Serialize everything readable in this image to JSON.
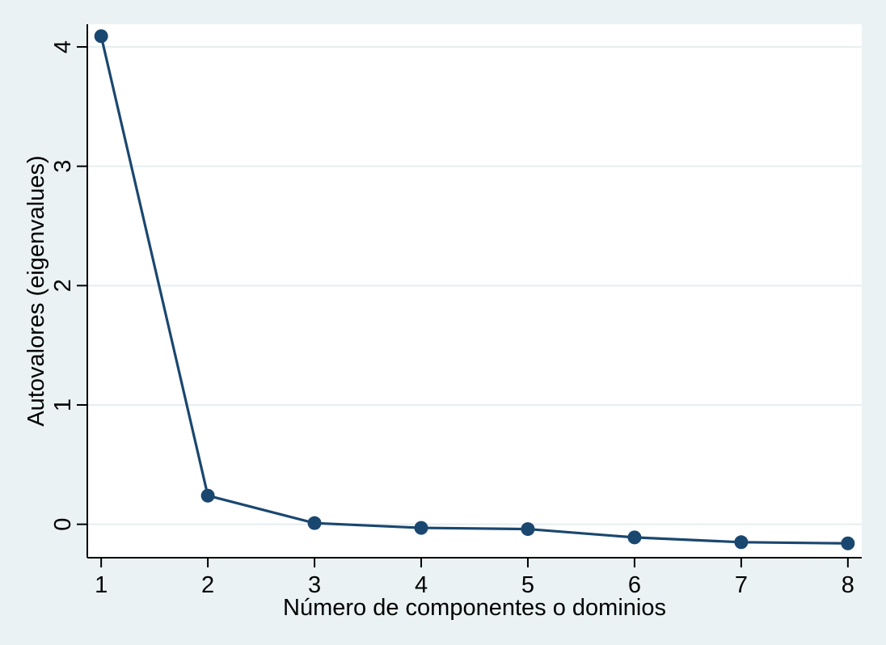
{
  "figure": {
    "background_color": "#eaf2f3",
    "plot_background_color": "#ffffff"
  },
  "chart_data": {
    "type": "line",
    "title": "",
    "xlabel": "Número de componentes o dominios",
    "ylabel": "Autovalores (eigenvalues)",
    "series": [
      {
        "name": "eigenvalues",
        "x": [
          1,
          2,
          3,
          4,
          5,
          6,
          7,
          8
        ],
        "values": [
          4.09,
          0.24,
          0.01,
          -0.03,
          -0.04,
          -0.11,
          -0.15,
          -0.16
        ]
      }
    ],
    "x_ticks": [
      1,
      2,
      3,
      4,
      5,
      6,
      7,
      8
    ],
    "y_ticks": [
      0,
      1,
      2,
      3,
      4
    ],
    "xlim": [
      0.87,
      8.13
    ],
    "ylim": [
      -0.28,
      4.19
    ],
    "grid": "horizontal-only",
    "legend": "none",
    "marker": "circle",
    "colors": {
      "line": "#1a476f",
      "marker": "#1a476f",
      "grid": "#e7eff2",
      "axis": "#000000",
      "text": "#000000",
      "figure_bg": "#eaf2f3",
      "plot_bg": "#ffffff"
    }
  }
}
